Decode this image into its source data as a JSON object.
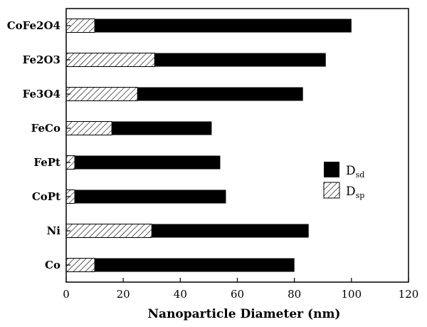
{
  "chart_data": {
    "type": "bar",
    "orientation": "horizontal",
    "stacked": true,
    "categories": [
      "CoFe2O4",
      "Fe2O3",
      "Fe3O4",
      "FeCo",
      "FePt",
      "CoPt",
      "Ni",
      "Co"
    ],
    "series": [
      {
        "name": "D_sp",
        "legend_main": "D",
        "legend_sub": "sp",
        "fill": "hatched",
        "values": [
          10,
          31,
          25,
          16,
          3,
          3,
          30,
          10
        ]
      },
      {
        "name": "D_sd",
        "legend_main": "D",
        "legend_sub": "sd",
        "fill": "#000000",
        "values": [
          100,
          91,
          83,
          51,
          54,
          56,
          85,
          80
        ]
      }
    ],
    "title": "",
    "xlabel": "Nanoparticle Diameter (nm)",
    "ylabel": "",
    "xlim": [
      0,
      120
    ],
    "xticks": [
      0,
      20,
      40,
      60,
      80,
      100,
      120
    ],
    "grid": false,
    "legend_position": "right"
  }
}
